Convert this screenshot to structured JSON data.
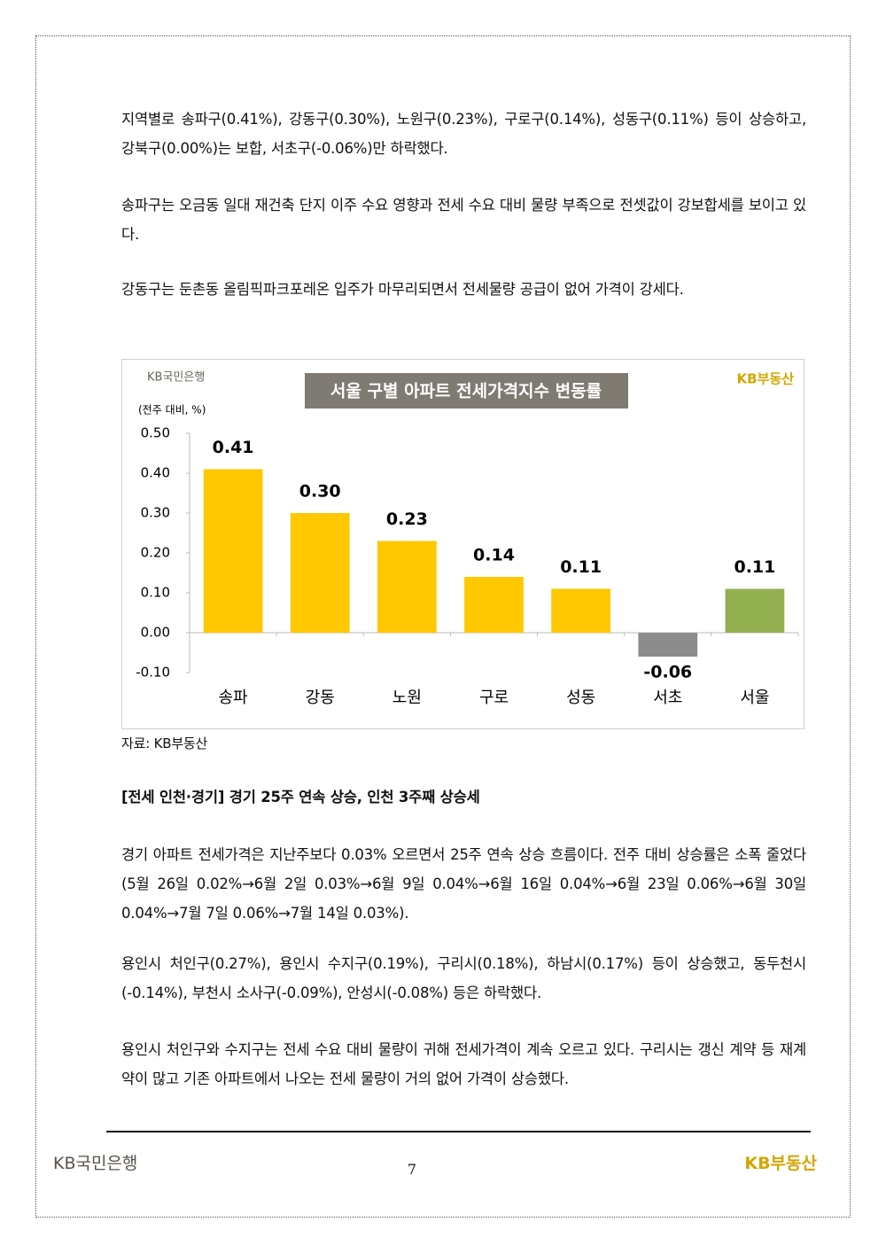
{
  "paragraphs": [
    "지역별로 송파구(0.41%), 강동구(0.30%), 노원구(0.23%), 구로구(0.14%), 성동구(0.11%) 등이 상승하고, 강북구(0.00%)는 보합, 서초구(-0.06%)만 하락했다.",
    "송파구는 오금동 일대 재건축 단지 이주 수요 영향과 전세 수요 대비 물량 부족으로 전셋값이 강보합세를 보이고 있다.",
    "강동구는 둔촌동 올림픽파크포레온 입주가 마무리되면서 전세물량 공급이 없어 가격이 강세다."
  ],
  "chart_data": {
    "type": "bar",
    "title": "서울 구별 아파트 전세가격지수 변동률",
    "logo_left": "KB국민은행",
    "logo_right": "KB부동산",
    "unit_label": "(전주 대비, %)",
    "categories": [
      "송파",
      "강동",
      "노원",
      "구로",
      "성동",
      "서초",
      "서울"
    ],
    "values": [
      0.41,
      0.3,
      0.23,
      0.14,
      0.11,
      -0.06,
      0.11
    ],
    "value_labels": [
      "0.41",
      "0.30",
      "0.23",
      "0.14",
      "0.11",
      "-0.06",
      "0.11"
    ],
    "colors": [
      "#ffc800",
      "#ffc800",
      "#ffc800",
      "#ffc800",
      "#ffc800",
      "#8c8c8c",
      "#92b050"
    ],
    "ylim": [
      -0.1,
      0.5
    ],
    "yticks": [
      {
        "value": 0.5,
        "label": "0.50"
      },
      {
        "value": 0.4,
        "label": "0.40"
      },
      {
        "value": 0.3,
        "label": "0.30"
      },
      {
        "value": 0.2,
        "label": "0.20"
      },
      {
        "value": 0.1,
        "label": "0.10"
      },
      {
        "value": 0,
        "label": "0.00"
      },
      {
        "value": -0.1,
        "label": "-0.10"
      }
    ],
    "grid": false
  },
  "source": "자료: KB부동산",
  "heading": "[전세 인천·경기] 경기 25주 연속 상승, 인천 3주째 상승세",
  "paragraphs2": [
    "경기 아파트 전세가격은 지난주보다 0.03% 오르면서 25주 연속 상승 흐름이다. 전주 대비 상승률은 소폭 줄었다(5월 26일 0.02%→6월 2일 0.03%→6월 9일 0.04%→6월 16일 0.04%→6월 23일 0.06%→6월 30일 0.04%→7월 7일 0.06%→7월 14일 0.03%).",
    "용인시 처인구(0.27%), 용인시 수지구(0.19%), 구리시(0.18%), 하남시(0.17%) 등이 상승했고, 동두천시(-0.14%), 부천시 소사구(-0.09%), 안성시(-0.08%) 등은 하락했다.",
    "용인시 처인구와 수지구는 전세 수요 대비 물량이 귀해 전세가격이 계속 오르고 있다. 구리시는 갱신 계약 등 재계약이 많고 기존 아파트에서 나오는 전세 물량이 거의 없어 가격이 상승했다."
  ],
  "footer": {
    "left": "KB국민은행",
    "page": "7",
    "right": "KB부동산"
  }
}
